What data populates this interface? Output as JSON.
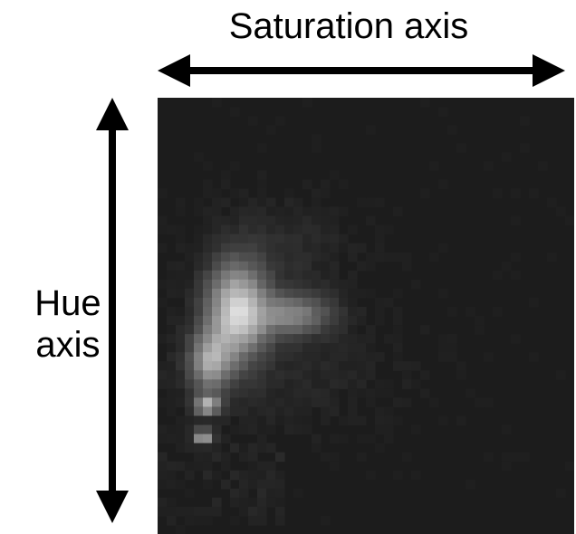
{
  "labels": {
    "saturation_axis": "Saturation axis",
    "hue_axis_line1": "Hue",
    "hue_axis_line2": "axis"
  },
  "histogram": {
    "type": "heatmap",
    "x_axis": "Saturation axis",
    "y_axis": "Hue axis",
    "colormap": "grayscale",
    "background_color": "#1c1c1c"
  },
  "colors": {
    "arrow": "#000000",
    "background": "#ffffff"
  }
}
